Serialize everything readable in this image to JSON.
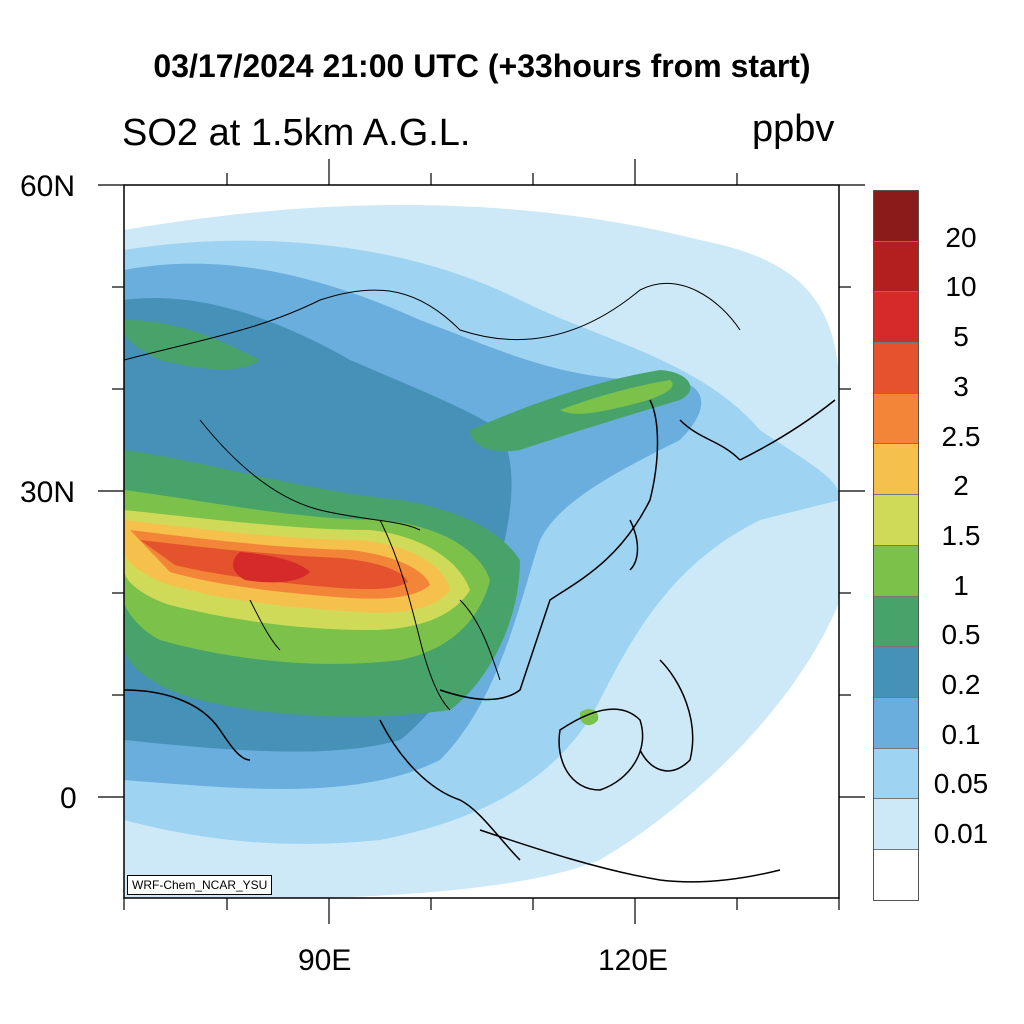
{
  "title": "03/17/2024 21:00 UTC (+33hours from start)",
  "subtitle": "SO2 at 1.5km A.G.L.",
  "units": "ppbv",
  "credit": "WRF-Chem_NCAR_YSU",
  "axes": {
    "lat_labels": [
      "60N",
      "30N",
      "0"
    ],
    "lon_labels": [
      "90E",
      "120E"
    ]
  },
  "legend": {
    "labels": [
      "20",
      "10",
      "5",
      "3",
      "2.5",
      "2",
      "1.5",
      "1",
      "0.5",
      "0.2",
      "0.1",
      "0.05",
      "0.01"
    ],
    "colors": [
      "#8b1a1a",
      "#b31f1f",
      "#d42a2a",
      "#e5532e",
      "#f28538",
      "#f6c04c",
      "#cfdb58",
      "#7cc24a",
      "#48a36b",
      "#4591b8",
      "#6aaedd",
      "#9ed4f2",
      "#cde9f8",
      "#ffffff"
    ]
  }
}
